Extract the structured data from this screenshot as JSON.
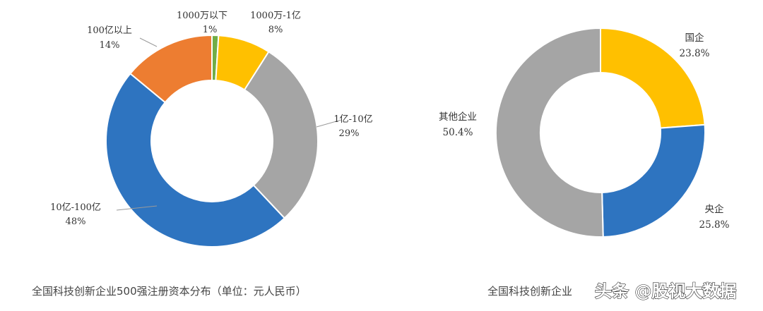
{
  "chart_data": [
    {
      "type": "pie",
      "title": "全国科技创新企业500强注册资本分布（单位：元人民币）",
      "categories": [
        "1000万以下",
        "1000万-1亿",
        "1亿-10亿",
        "10亿-100亿",
        "100亿以上"
      ],
      "values": [
        1,
        8,
        29,
        48,
        14
      ],
      "value_labels": [
        "1%",
        "8%",
        "29%",
        "48%",
        "14%"
      ],
      "colors": [
        "#70ad47",
        "#ffc000",
        "#a5a5a5",
        "#2e74c0",
        "#ed7d31"
      ]
    },
    {
      "type": "pie",
      "title": "全国科技创新企业",
      "categories": [
        "国企",
        "央企",
        "其他企业"
      ],
      "values": [
        23.8,
        25.8,
        50.4
      ],
      "value_labels": [
        "23.8%",
        "25.8%",
        "50.4%"
      ],
      "colors": [
        "#ffc000",
        "#2e74c0",
        "#a5a5a5"
      ]
    }
  ],
  "watermark": {
    "text": "头条 @股视大数据"
  }
}
